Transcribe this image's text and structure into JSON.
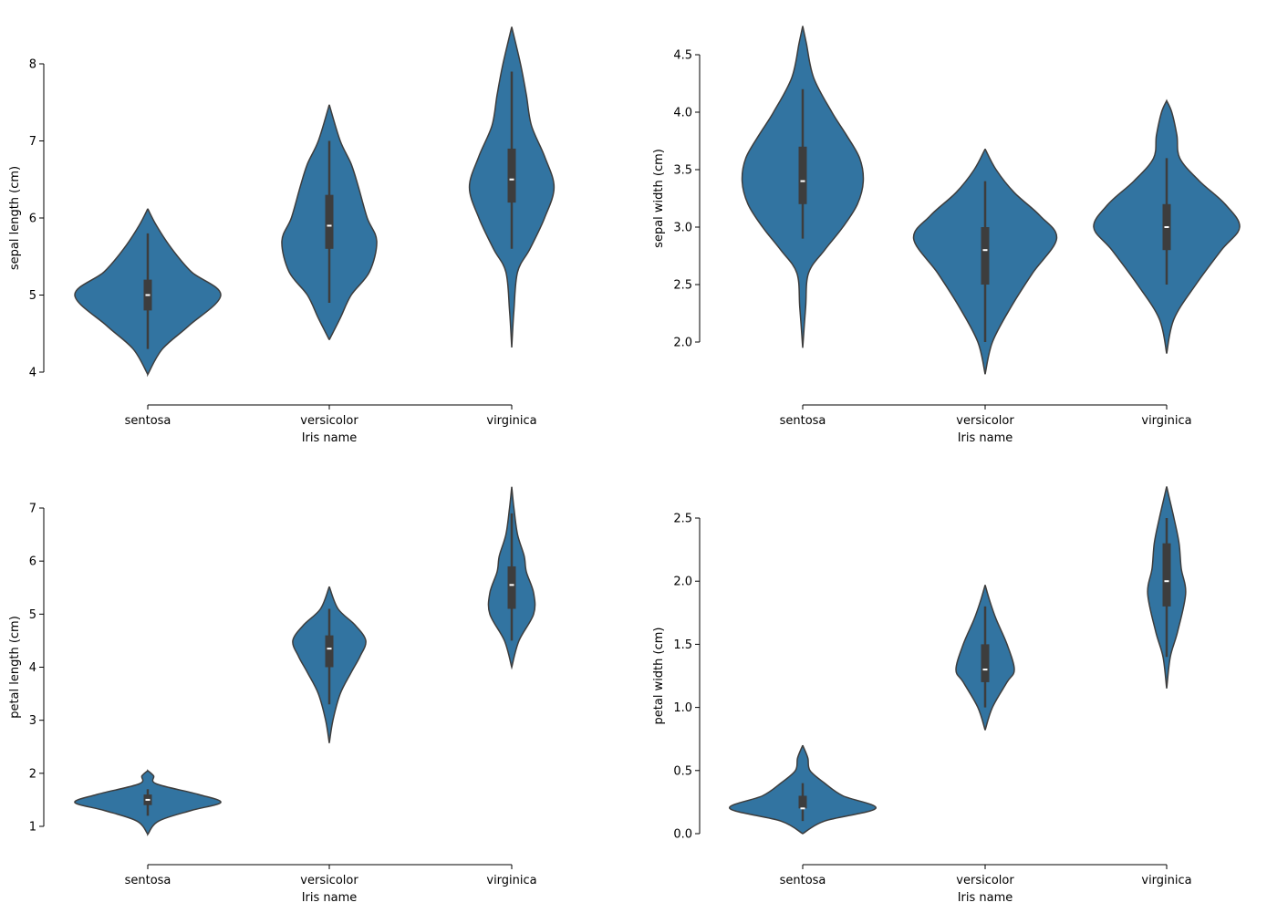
{
  "colors": {
    "violin_fill": "#3274a1",
    "violin_edge": "#3d3d3d",
    "box": "#3d3d3d",
    "median": "#ffffff",
    "axis": "#000000"
  },
  "chart_data": [
    {
      "type": "violin",
      "xlabel": "Iris name",
      "ylabel": "sepal length (cm)",
      "categories": [
        "sentosa",
        "versicolor",
        "virginica"
      ],
      "yticks": [
        4,
        5,
        6,
        7,
        8
      ],
      "ytick_labels": [
        "4",
        "5",
        "6",
        "7",
        "8"
      ],
      "ylim": [
        4,
        8
      ],
      "violins": [
        {
          "box": {
            "whisker_low": 4.3,
            "q1": 4.8,
            "median": 5.0,
            "q3": 5.2,
            "whisker_high": 5.8
          },
          "density": [
            [
              3.97,
              0
            ],
            [
              4.3,
              0.2
            ],
            [
              4.6,
              0.56
            ],
            [
              5.0,
              1.0
            ],
            [
              5.3,
              0.6
            ],
            [
              5.6,
              0.33
            ],
            [
              5.9,
              0.12
            ],
            [
              6.12,
              0
            ]
          ]
        },
        {
          "box": {
            "whisker_low": 4.9,
            "q1": 5.6,
            "median": 5.9,
            "q3": 6.3,
            "whisker_high": 7.0
          },
          "density": [
            [
              4.42,
              0
            ],
            [
              4.7,
              0.15
            ],
            [
              5.0,
              0.3
            ],
            [
              5.3,
              0.55
            ],
            [
              5.7,
              0.65
            ],
            [
              6.0,
              0.52
            ],
            [
              6.4,
              0.4
            ],
            [
              6.7,
              0.3
            ],
            [
              7.0,
              0.15
            ],
            [
              7.47,
              0
            ]
          ]
        },
        {
          "box": {
            "whisker_low": 5.6,
            "q1": 6.2,
            "median": 6.5,
            "q3": 6.9,
            "whisker_high": 7.9
          },
          "density": [
            [
              4.32,
              0
            ],
            [
              4.8,
              0.03
            ],
            [
              5.3,
              0.08
            ],
            [
              5.6,
              0.25
            ],
            [
              6.0,
              0.45
            ],
            [
              6.4,
              0.58
            ],
            [
              6.8,
              0.45
            ],
            [
              7.2,
              0.27
            ],
            [
              7.6,
              0.2
            ],
            [
              8.0,
              0.12
            ],
            [
              8.48,
              0
            ]
          ]
        }
      ]
    },
    {
      "type": "violin",
      "xlabel": "Iris name",
      "ylabel": "sepal width (cm)",
      "categories": [
        "sentosa",
        "versicolor",
        "virginica"
      ],
      "yticks": [
        2.0,
        2.5,
        3.0,
        3.5,
        4.0,
        4.5
      ],
      "ytick_labels": [
        "2.0",
        "2.5",
        "3.0",
        "3.5",
        "4.0",
        "4.5"
      ],
      "ylim": [
        2.0,
        4.5
      ],
      "violins": [
        {
          "box": {
            "whisker_low": 2.9,
            "q1": 3.2,
            "median": 3.4,
            "q3": 3.7,
            "whisker_high": 4.2
          },
          "density": [
            [
              1.95,
              0
            ],
            [
              2.3,
              0.04
            ],
            [
              2.6,
              0.08
            ],
            [
              2.8,
              0.3
            ],
            [
              3.0,
              0.55
            ],
            [
              3.2,
              0.75
            ],
            [
              3.4,
              0.83
            ],
            [
              3.6,
              0.78
            ],
            [
              3.8,
              0.6
            ],
            [
              4.0,
              0.4
            ],
            [
              4.3,
              0.15
            ],
            [
              4.6,
              0.05
            ],
            [
              4.75,
              0
            ]
          ]
        },
        {
          "box": {
            "whisker_low": 2.0,
            "q1": 2.5,
            "median": 2.8,
            "q3": 3.0,
            "whisker_high": 3.4
          },
          "density": [
            [
              1.72,
              0
            ],
            [
              2.0,
              0.1
            ],
            [
              2.3,
              0.35
            ],
            [
              2.6,
              0.65
            ],
            [
              2.9,
              0.98
            ],
            [
              3.1,
              0.75
            ],
            [
              3.3,
              0.4
            ],
            [
              3.5,
              0.15
            ],
            [
              3.68,
              0
            ]
          ]
        },
        {
          "box": {
            "whisker_low": 2.5,
            "q1": 2.8,
            "median": 3.0,
            "q3": 3.2,
            "whisker_high": 3.6
          },
          "density": [
            [
              1.9,
              0
            ],
            [
              2.2,
              0.1
            ],
            [
              2.5,
              0.4
            ],
            [
              2.8,
              0.75
            ],
            [
              3.0,
              1.0
            ],
            [
              3.2,
              0.8
            ],
            [
              3.4,
              0.45
            ],
            [
              3.6,
              0.18
            ],
            [
              3.8,
              0.14
            ],
            [
              4.0,
              0.07
            ],
            [
              4.1,
              0
            ]
          ]
        }
      ]
    },
    {
      "type": "violin",
      "xlabel": "Iris name",
      "ylabel": "petal length (cm)",
      "categories": [
        "sentosa",
        "versicolor",
        "virginica"
      ],
      "yticks": [
        1,
        2,
        3,
        4,
        5,
        6,
        7
      ],
      "ytick_labels": [
        "1",
        "2",
        "3",
        "4",
        "5",
        "6",
        "7"
      ],
      "ylim": [
        1,
        7
      ],
      "violins": [
        {
          "box": {
            "whisker_low": 1.2,
            "q1": 1.4,
            "median": 1.5,
            "q3": 1.6,
            "whisker_high": 1.7
          },
          "density": [
            [
              0.85,
              0
            ],
            [
              1.1,
              0.15
            ],
            [
              1.3,
              0.6
            ],
            [
              1.45,
              1.0
            ],
            [
              1.6,
              0.7
            ],
            [
              1.8,
              0.12
            ],
            [
              1.95,
              0.08
            ],
            [
              2.05,
              0
            ]
          ]
        },
        {
          "box": {
            "whisker_low": 3.3,
            "q1": 4.0,
            "median": 4.35,
            "q3": 4.6,
            "whisker_high": 5.1
          },
          "density": [
            [
              2.57,
              0
            ],
            [
              3.0,
              0.05
            ],
            [
              3.5,
              0.15
            ],
            [
              3.9,
              0.3
            ],
            [
              4.2,
              0.42
            ],
            [
              4.5,
              0.5
            ],
            [
              4.8,
              0.35
            ],
            [
              5.1,
              0.12
            ],
            [
              5.52,
              0
            ]
          ]
        },
        {
          "box": {
            "whisker_low": 4.5,
            "q1": 5.1,
            "median": 5.55,
            "q3": 5.9,
            "whisker_high": 6.9
          },
          "density": [
            [
              4.0,
              0
            ],
            [
              4.5,
              0.1
            ],
            [
              5.0,
              0.3
            ],
            [
              5.4,
              0.3
            ],
            [
              5.8,
              0.2
            ],
            [
              6.1,
              0.17
            ],
            [
              6.5,
              0.08
            ],
            [
              7.0,
              0.03
            ],
            [
              7.4,
              0
            ]
          ]
        }
      ]
    },
    {
      "type": "violin",
      "xlabel": "Iris name",
      "ylabel": "petal width (cm)",
      "categories": [
        "sentosa",
        "versicolor",
        "virginica"
      ],
      "yticks": [
        0.0,
        0.5,
        1.0,
        1.5,
        2.0,
        2.5
      ],
      "ytick_labels": [
        "0.0",
        "0.5",
        "1.0",
        "1.5",
        "2.0",
        "2.5"
      ],
      "ylim": [
        0.0,
        2.5
      ],
      "violins": [
        {
          "box": {
            "whisker_low": 0.1,
            "q1": 0.2,
            "median": 0.2,
            "q3": 0.3,
            "whisker_high": 0.4
          },
          "density": [
            [
              0.0,
              0
            ],
            [
              0.1,
              0.3
            ],
            [
              0.2,
              1.0
            ],
            [
              0.3,
              0.55
            ],
            [
              0.4,
              0.3
            ],
            [
              0.5,
              0.1
            ],
            [
              0.6,
              0.07
            ],
            [
              0.7,
              0
            ]
          ]
        },
        {
          "box": {
            "whisker_low": 1.0,
            "q1": 1.2,
            "median": 1.3,
            "q3": 1.5,
            "whisker_high": 1.8
          },
          "density": [
            [
              0.82,
              0
            ],
            [
              1.0,
              0.1
            ],
            [
              1.2,
              0.3
            ],
            [
              1.3,
              0.4
            ],
            [
              1.5,
              0.3
            ],
            [
              1.7,
              0.15
            ],
            [
              1.85,
              0.06
            ],
            [
              1.97,
              0
            ]
          ]
        },
        {
          "box": {
            "whisker_low": 1.4,
            "q1": 1.8,
            "median": 2.0,
            "q3": 2.3,
            "whisker_high": 2.5
          },
          "density": [
            [
              1.15,
              0
            ],
            [
              1.4,
              0.05
            ],
            [
              1.6,
              0.15
            ],
            [
              1.9,
              0.26
            ],
            [
              2.1,
              0.2
            ],
            [
              2.3,
              0.17
            ],
            [
              2.5,
              0.1
            ],
            [
              2.7,
              0.02
            ],
            [
              2.75,
              0
            ]
          ]
        }
      ]
    }
  ]
}
